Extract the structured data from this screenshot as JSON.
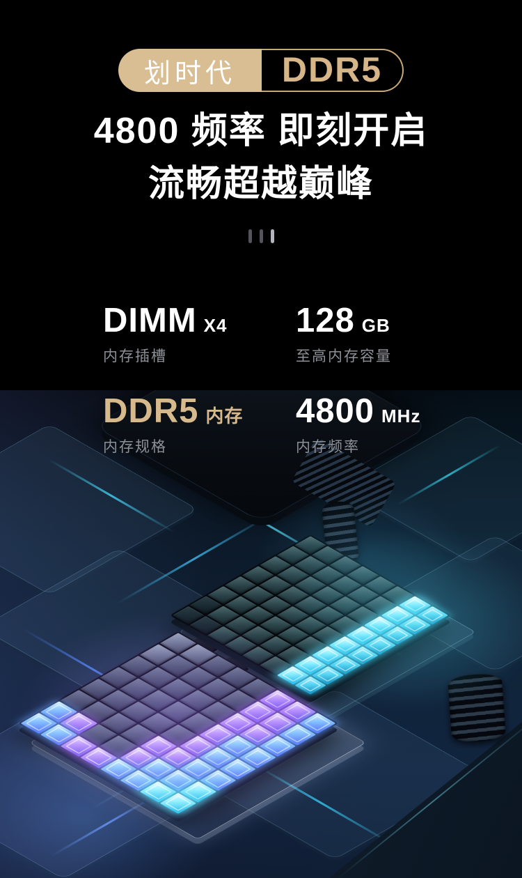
{
  "badge": {
    "left_label": "划时代",
    "right_label": "DDR5"
  },
  "heading": {
    "line1": "4800 频率 即刻开启",
    "line2": "流畅超越巅峰"
  },
  "specs": [
    {
      "value": "DIMM",
      "unit": "X4",
      "label": "内存插槽"
    },
    {
      "value": "128",
      "unit": "GB",
      "label": "至高内存容量"
    },
    {
      "value": "DDR5",
      "unit": "内存",
      "label": "内存规格"
    },
    {
      "value": "4800",
      "unit": "MHz",
      "label": "内存频率"
    }
  ],
  "colors": {
    "badge_fill": "#d9bd93",
    "badge_border": "#c9a977",
    "gold_text": "#d6ba8e",
    "label_gray": "#8d9197",
    "glow_cyan": "#6ee8ff",
    "glow_purple": "#b993ff",
    "glow_blue": "#86c4ff",
    "board_navy": "#122239"
  },
  "hero": {
    "alt": "isometric circuit board with two glowing memory cube grids",
    "cell_classes": {
      "T": "cell-teal",
      "S": "cell-teal-dark",
      "L": "cell-light",
      "D": "cell-dark",
      "P": "cell-glow-purple",
      "B": "cell-glow-blue",
      "C": "cell-glow-cyan",
      "c": "cell-glow-cyan-deep"
    },
    "grids": [
      {
        "name": "teal-cube-grid",
        "columns": 8,
        "rows": [
          "TTTTTTCc",
          "TTTTTTCc",
          "TTTTTTCc",
          "TTTTTTCc",
          "TTTTTTCc",
          "TTTTTTCc",
          "STTTTTCc",
          "SSTTTTCc"
        ]
      },
      {
        "name": "purple-cube-grid",
        "columns": 8,
        "rows": [
          "LLDDDPPB",
          "LDDDDPPB",
          "DDDDDPPB",
          "DDDDDPBB",
          "DDDDDPBB",
          "DDDDPPBB",
          "BPDDPBBC",
          "BBPPBBCC"
        ]
      }
    ]
  }
}
